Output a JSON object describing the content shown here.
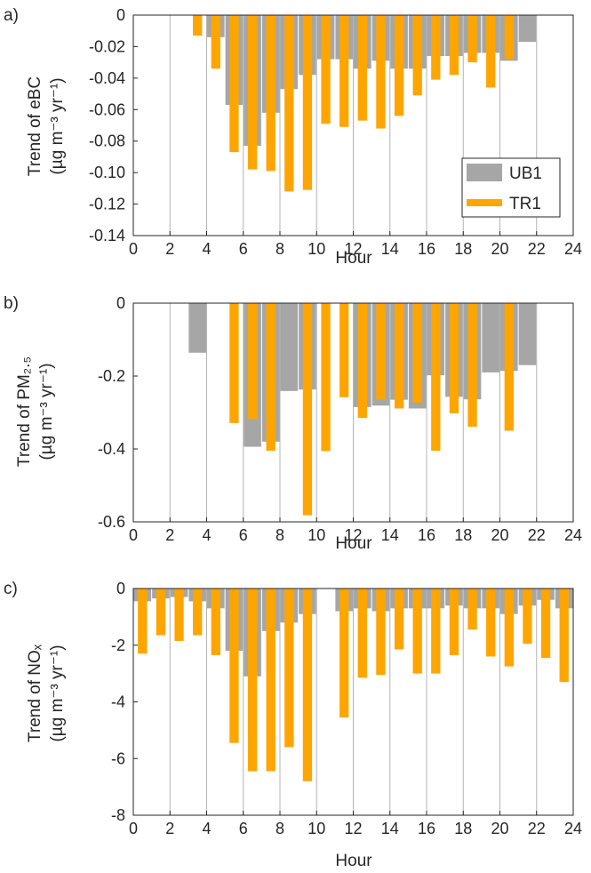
{
  "panels": [
    {
      "panel_label": "a)",
      "ylabel_lines": [
        "Trend of eBC",
        "(µg m⁻³ yr⁻¹)"
      ],
      "xlabel": "Hour"
    },
    {
      "panel_label": "b)",
      "ylabel_lines": [
        "Trend of PM₂.₅",
        "(µg m⁻³ yr⁻¹)"
      ],
      "xlabel": "Hour"
    },
    {
      "panel_label": "c)",
      "ylabel_lines": [
        "Trend of NOₓ",
        "(µg m⁻³ yr⁻¹)"
      ],
      "xlabel": "Hour"
    }
  ],
  "legend": {
    "position": "inside-lower-right of panel a",
    "entries": [
      "UB1",
      "TR1"
    ]
  },
  "colors": {
    "UB1": "#a6a6a6",
    "TR1": "#ffa500",
    "gridline": "#b4b4b4",
    "axis": "#262626"
  },
  "chart_data": [
    {
      "type": "bar",
      "panel": "a)",
      "xlabel": "Hour",
      "ylabel": "Trend of eBC (µg m-3 yr-1)",
      "xlim": [
        0,
        24
      ],
      "ylim": [
        -0.14,
        0
      ],
      "xticks": [
        0,
        2,
        4,
        6,
        8,
        10,
        12,
        14,
        16,
        18,
        20,
        22,
        24
      ],
      "yticks": [
        0,
        -0.02,
        -0.04,
        -0.06,
        -0.08,
        -0.1,
        -0.12,
        -0.14
      ],
      "ytick_labels": [
        "0",
        "-0.02",
        "-0.04",
        "-0.06",
        "-0.08",
        "-0.10",
        "-0.12",
        "-0.14"
      ],
      "grid": "vertical lines at even hours",
      "hours": [
        0,
        1,
        2,
        3,
        4,
        5,
        6,
        7,
        8,
        9,
        10,
        11,
        12,
        13,
        14,
        15,
        16,
        17,
        18,
        19,
        20,
        21,
        22,
        23
      ],
      "series": [
        {
          "name": "UB1",
          "style": "wide gray bar",
          "values": [
            null,
            null,
            null,
            null,
            -0.014,
            -0.057,
            -0.083,
            -0.062,
            -0.047,
            -0.038,
            -0.028,
            -0.028,
            -0.034,
            -0.029,
            -0.034,
            -0.034,
            -0.026,
            -0.026,
            -0.024,
            -0.024,
            -0.029,
            -0.017,
            null,
            null
          ]
        },
        {
          "name": "TR1",
          "style": "narrow orange bar",
          "values": [
            null,
            null,
            null,
            -0.013,
            -0.034,
            -0.087,
            -0.098,
            -0.099,
            -0.112,
            -0.111,
            -0.069,
            -0.071,
            -0.067,
            -0.072,
            -0.064,
            -0.051,
            -0.041,
            -0.038,
            -0.03,
            -0.046,
            -0.028,
            null,
            null,
            null
          ]
        }
      ]
    },
    {
      "type": "bar",
      "panel": "b)",
      "xlabel": "Hour",
      "ylabel": "Trend of PM2.5 (µg m-3 yr-1)",
      "xlim": [
        0,
        24
      ],
      "ylim": [
        -0.6,
        0
      ],
      "xticks": [
        0,
        2,
        4,
        6,
        8,
        10,
        12,
        14,
        16,
        18,
        20,
        22,
        24
      ],
      "yticks": [
        0,
        -0.2,
        -0.4,
        -0.6
      ],
      "ytick_labels": [
        "0",
        "-0.2",
        "-0.4",
        "-0.6"
      ],
      "grid": "vertical lines at even hours",
      "hours": [
        0,
        1,
        2,
        3,
        4,
        5,
        6,
        7,
        8,
        9,
        10,
        11,
        12,
        13,
        14,
        15,
        16,
        17,
        18,
        19,
        20,
        21,
        22,
        23
      ],
      "series": [
        {
          "name": "UB1",
          "style": "wide gray bar",
          "values": [
            null,
            null,
            null,
            -0.136,
            null,
            null,
            -0.394,
            -0.38,
            -0.241,
            -0.237,
            null,
            null,
            -0.285,
            -0.281,
            -0.265,
            -0.289,
            -0.198,
            -0.257,
            -0.264,
            -0.19,
            -0.186,
            -0.17,
            null,
            null
          ]
        },
        {
          "name": "TR1",
          "style": "narrow orange bar",
          "values": [
            null,
            null,
            null,
            null,
            null,
            -0.329,
            -0.318,
            -0.405,
            null,
            -0.582,
            -0.406,
            -0.258,
            -0.315,
            -0.265,
            -0.289,
            -0.273,
            -0.405,
            -0.302,
            -0.339,
            null,
            -0.35,
            null,
            null,
            null
          ]
        }
      ]
    },
    {
      "type": "bar",
      "panel": "c)",
      "xlabel": "Hour",
      "ylabel": "Trend of NOx (µg m-3 yr-1)",
      "xlim": [
        0,
        24
      ],
      "ylim": [
        -8,
        0
      ],
      "xticks": [
        0,
        2,
        4,
        6,
        8,
        10,
        12,
        14,
        16,
        18,
        20,
        22,
        24
      ],
      "yticks": [
        0,
        -2,
        -4,
        -6,
        -8
      ],
      "ytick_labels": [
        "0",
        "-2",
        "-4",
        "-6",
        "-8"
      ],
      "grid": "vertical lines at even hours",
      "hours": [
        0,
        1,
        2,
        3,
        4,
        5,
        6,
        7,
        8,
        9,
        10,
        11,
        12,
        13,
        14,
        15,
        16,
        17,
        18,
        19,
        20,
        21,
        22,
        23
      ],
      "series": [
        {
          "name": "UB1",
          "style": "wide gray bar",
          "values": [
            -0.45,
            -0.35,
            -0.3,
            -0.45,
            -0.7,
            -2.2,
            -3.1,
            -1.5,
            -1.2,
            -0.9,
            null,
            -0.8,
            -0.7,
            -0.8,
            -0.7,
            -0.7,
            -0.7,
            -0.6,
            -0.7,
            -0.7,
            -0.9,
            -0.6,
            -0.4,
            -0.7
          ]
        },
        {
          "name": "TR1",
          "style": "narrow orange bar",
          "values": [
            -2.3,
            -1.65,
            -1.85,
            -1.65,
            -2.35,
            -5.45,
            -6.45,
            -6.45,
            -5.6,
            -6.8,
            null,
            -4.55,
            -3.15,
            -3.05,
            -2.15,
            -3.0,
            -3.0,
            -2.35,
            -1.45,
            -2.4,
            -2.75,
            -1.95,
            -2.45,
            -3.3
          ]
        }
      ]
    }
  ]
}
